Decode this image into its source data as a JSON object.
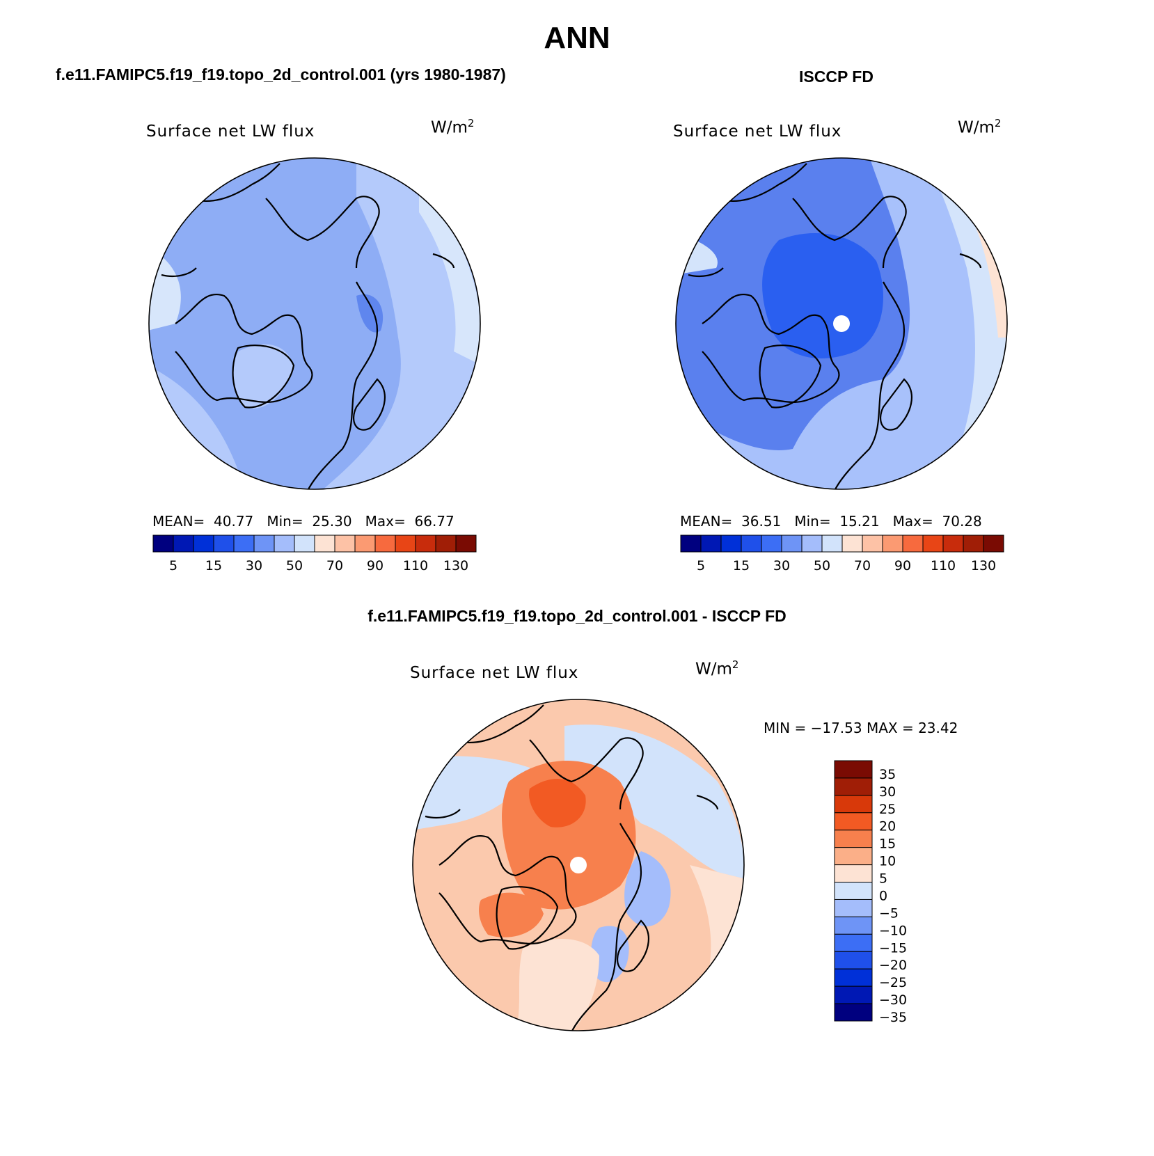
{
  "main_title": "ANN",
  "case_title": "f.e11.FAMIPC5.f19_f19.topo_2d_control.001 (yrs 1980-1987)",
  "obs_title": "ISCCP FD",
  "diff_title": "f.e11.FAMIPC5.f19_f19.topo_2d_control.001 - ISCCP FD",
  "panel_variable": "Surface net LW flux",
  "units_base": "W/m",
  "units_exp": "2",
  "panels": {
    "model": {
      "mean_label": "MEAN=",
      "mean": "40.77",
      "min_label": "Min=",
      "min": "25.30",
      "max_label": "Max=",
      "max": "66.77"
    },
    "obs": {
      "mean_label": "MEAN=",
      "mean": "36.51",
      "min_label": "Min=",
      "min": "15.21",
      "max_label": "Max=",
      "max": "70.28"
    },
    "diff": {
      "minmax_text": "MIN = −17.53 MAX =  23.42"
    }
  },
  "abs_colorbar": {
    "colors": [
      "#00007f",
      "#0018b4",
      "#0030d8",
      "#1f50ea",
      "#3c6ef5",
      "#6e94f6",
      "#a4bdfb",
      "#d2e3fb",
      "#fde3d4",
      "#fdc2a6",
      "#fb9a72",
      "#f76a3e",
      "#e84516",
      "#c82c0c",
      "#a01e06",
      "#7a0b03"
    ],
    "tick_labels": [
      "5",
      "15",
      "30",
      "50",
      "70",
      "90",
      "110",
      "130"
    ]
  },
  "diff_colorbar": {
    "colors": [
      "#7a0b03",
      "#a01e06",
      "#d8390a",
      "#f25a23",
      "#f7804d",
      "#fbaf88",
      "#fde3d4",
      "#d2e3fb",
      "#a4bdfb",
      "#6e94f6",
      "#3c6ef5",
      "#1f50ea",
      "#0030d8",
      "#0018b4",
      "#00007f"
    ],
    "tick_labels": [
      "35",
      "30",
      "25",
      "20",
      "15",
      "10",
      "5",
      "0",
      "−5",
      "−10",
      "−15",
      "−20",
      "−25",
      "−30",
      "−35"
    ]
  },
  "map_fill": {
    "model": {
      "base": "#8eadf5",
      "outer": "#b4cafb",
      "rim": "#d7e6fb",
      "dark": "#5f86ee"
    },
    "obs": {
      "base": "#a8c1fb",
      "outer": "#d4e4fb",
      "mid": "#5a80ee",
      "core": "#2a5ff0",
      "rim": "#fde3d4"
    },
    "diff": {
      "base": "#fbc9ad",
      "outer": "#fde3d4",
      "warm": "#f7804d",
      "hot": "#f25a23",
      "cool": "#d2e3fb",
      "cooler": "#a4bdfb"
    }
  }
}
